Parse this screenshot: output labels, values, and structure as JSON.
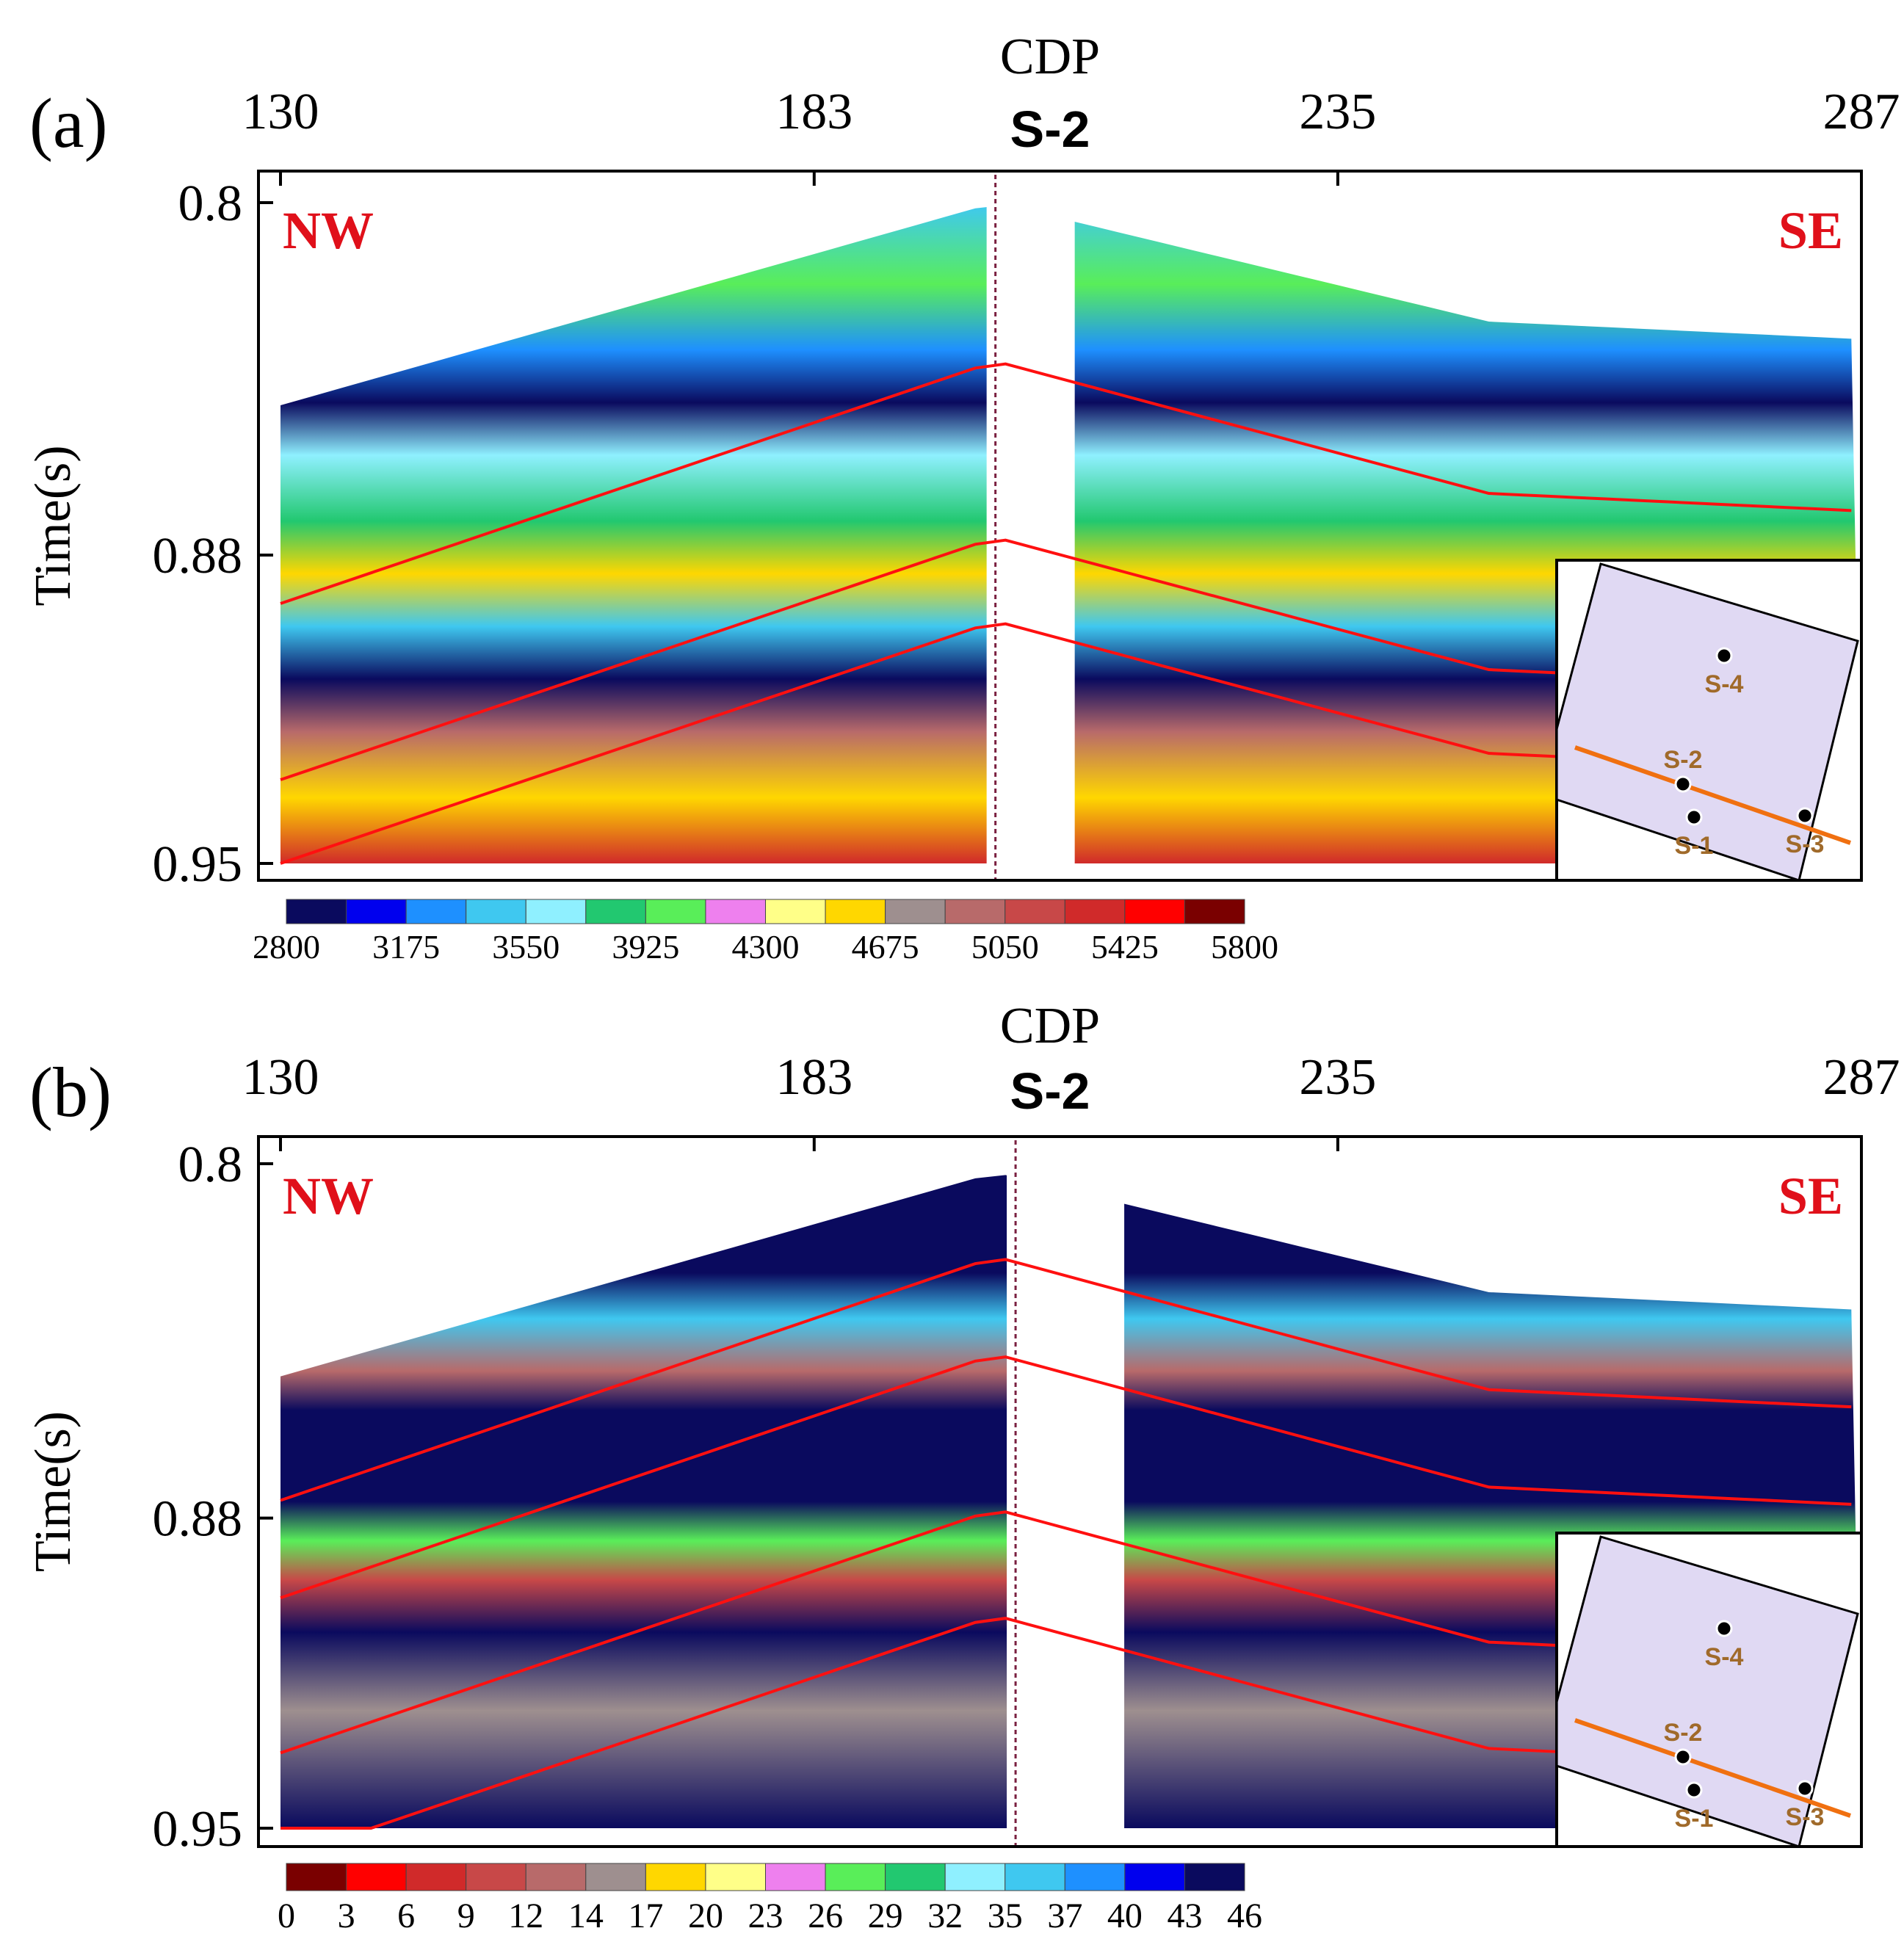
{
  "chart_data": [
    {
      "panel_label": "(a)",
      "type": "heatmap",
      "title": "CDP",
      "well": "S-2",
      "xlabel": "CDP",
      "ylabel": "Time(s)",
      "x_ticks": [
        "130",
        "183",
        "235",
        "287"
      ],
      "x_tick_values": [
        130,
        183,
        235,
        287
      ],
      "y_ticks": [
        "0.8",
        "0.88",
        "0.95"
      ],
      "y_tick_values": [
        0.8,
        0.88,
        0.95
      ],
      "xlim": [
        130,
        287
      ],
      "ylim": [
        0.8,
        0.95
      ],
      "left_label": "NW",
      "right_label": "SE",
      "well_cdp": 201,
      "colorbar": {
        "labels": [
          "2800",
          "3175",
          "3550",
          "3925",
          "4300",
          "4675",
          "5050",
          "5425",
          "5800"
        ],
        "colors": [
          "#0a0a5e",
          "#0000ee",
          "#1e90ff",
          "#3fc8f0",
          "#8ff0ff",
          "#22c870",
          "#59ee59",
          "#ee80ee",
          "#ffff88",
          "#ffd700",
          "#9e8f8f",
          "#b86a6a",
          "#c84848",
          "#d02a2a",
          "#ff0000",
          "#7a0000"
        ]
      },
      "horizons_time": [
        0.836,
        0.876,
        0.895
      ],
      "map_inset": {
        "wells": [
          "S-4",
          "S-2",
          "S-1",
          "S-3"
        ]
      }
    },
    {
      "panel_label": "(b)",
      "type": "heatmap",
      "title": "CDP",
      "well": "S-2",
      "xlabel": "CDP",
      "ylabel": "Time(s)",
      "x_ticks": [
        "130",
        "183",
        "235",
        "287"
      ],
      "x_tick_values": [
        130,
        183,
        235,
        287
      ],
      "y_ticks": [
        "0.8",
        "0.88",
        "0.95"
      ],
      "y_tick_values": [
        0.8,
        0.88,
        0.95
      ],
      "xlim": [
        130,
        287
      ],
      "ylim": [
        0.8,
        0.95
      ],
      "left_label": "NW",
      "right_label": "SE",
      "well_cdp": 203,
      "colorbar": {
        "labels": [
          "0",
          "3",
          "6",
          "9",
          "12",
          "14",
          "17",
          "20",
          "23",
          "26",
          "29",
          "32",
          "35",
          "37",
          "40",
          "43",
          "46"
        ],
        "colors": [
          "#7a0000",
          "#ff0000",
          "#d02a2a",
          "#c84848",
          "#b86a6a",
          "#9e8f8f",
          "#ffd700",
          "#ffff88",
          "#ee80ee",
          "#59ee59",
          "#22c870",
          "#8ff0ff",
          "#3fc8f0",
          "#1e90ff",
          "#0000ee",
          "#0a0a5e"
        ]
      },
      "horizons_time": [
        0.821,
        0.843,
        0.878,
        0.902
      ],
      "map_inset": {
        "wells": [
          "S-4",
          "S-2",
          "S-1",
          "S-3"
        ]
      }
    }
  ]
}
